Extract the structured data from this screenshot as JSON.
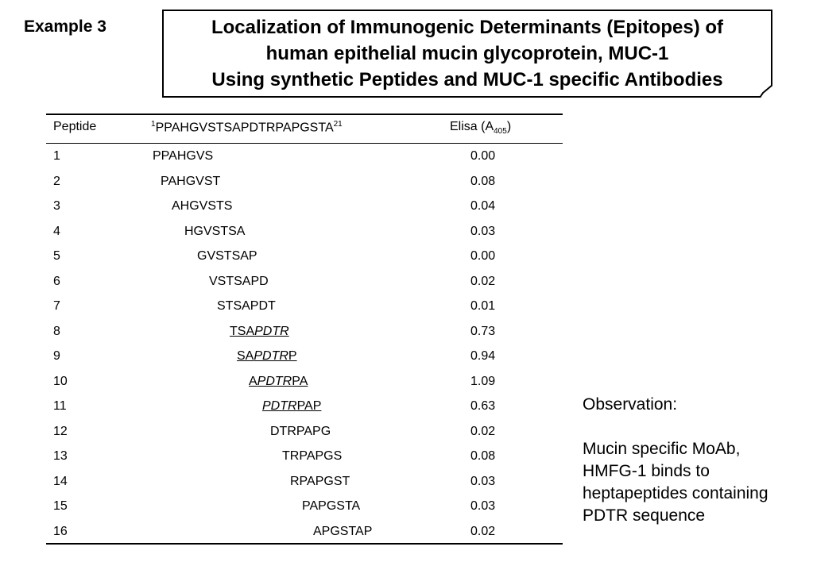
{
  "example_label": "Example 3",
  "title": {
    "line1": "Localization of Immunogenic Determinants (Epitopes) of",
    "line2": "human epithelial mucin glycoprotein, MUC-1",
    "line3": "Using synthetic Peptides and MUC-1 specific Antibodies"
  },
  "table": {
    "headers": {
      "peptide": "Peptide",
      "sequence_start": "1",
      "sequence": "PPAHGVSTSAPDTRPAPGSTA",
      "sequence_end": "21",
      "elisa": "Elisa (A",
      "elisa_sub": "405",
      "elisa_close": ")"
    },
    "rows": [
      {
        "num": "1",
        "seq": "PPAHGVS",
        "elisa": "0.00"
      },
      {
        "num": "2",
        "seq": "PAHGVST",
        "elisa": "0.08"
      },
      {
        "num": "3",
        "seq": "AHGVSTS",
        "elisa": "0.04"
      },
      {
        "num": "4",
        "seq": "HGVSTSA",
        "elisa": "0.03"
      },
      {
        "num": "5",
        "seq": "GVSTSAP",
        "elisa": "0.00"
      },
      {
        "num": "6",
        "seq": "VSTSAPD",
        "elisa": "0.02"
      },
      {
        "num": "7",
        "seq": "STSAPDT",
        "elisa": "0.01"
      },
      {
        "num": "8",
        "seq_parts": {
          "a": "TSA",
          "b": "PDTR",
          "c": ""
        },
        "elisa": "0.73"
      },
      {
        "num": "9",
        "seq_parts": {
          "a": "SA",
          "b": "PDTR",
          "c": "P"
        },
        "elisa": "0.94"
      },
      {
        "num": "10",
        "seq_parts": {
          "a": "A",
          "b": "PDTR",
          "c": "PA"
        },
        "elisa": "1.09"
      },
      {
        "num": "11",
        "seq_parts": {
          "a": "",
          "b": "PDTR",
          "c": "PAP"
        },
        "elisa": "0.63"
      },
      {
        "num": "12",
        "seq": "DTRPAPG",
        "elisa": "0.02"
      },
      {
        "num": "13",
        "seq": "TRPAPGS",
        "elisa": "0.08"
      },
      {
        "num": "14",
        "seq": "RPAPGST",
        "elisa": "0.03"
      },
      {
        "num": "15",
        "seq": "PAPGSTA",
        "elisa": "0.03"
      },
      {
        "num": "16",
        "seq": "APGSTAP",
        "elisa": "0.02"
      }
    ]
  },
  "observation": {
    "title": "Observation:",
    "lines": [
      "Mucin specific MoAb,",
      "HMFG-1 binds to",
      "heptapeptides containing",
      "PDTR sequence"
    ]
  }
}
